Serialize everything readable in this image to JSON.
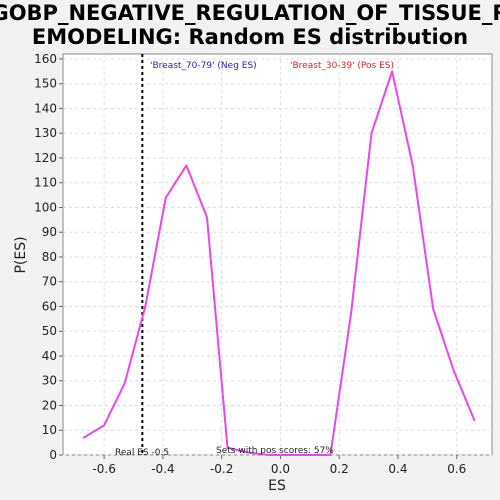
{
  "chart_data": {
    "type": "line",
    "title_line1": "GOBP_NEGATIVE_REGULATION_OF_TISSUE_R",
    "title_line2": "EMODELING: Random ES distribution",
    "xlabel": "ES",
    "ylabel": "P(ES)",
    "xlim": [
      -0.74,
      0.72
    ],
    "ylim": [
      0,
      162
    ],
    "grid": true,
    "x_ticks": [
      -0.6,
      -0.4,
      -0.2,
      0.0,
      0.2,
      0.4,
      0.6
    ],
    "x_tick_labels": [
      "-0.6",
      "-0.4",
      "-0.2",
      "0.0",
      "0.2",
      "0.4",
      "0.6"
    ],
    "y_ticks": [
      0,
      10,
      20,
      30,
      40,
      50,
      60,
      70,
      80,
      90,
      100,
      110,
      120,
      130,
      140,
      150,
      160
    ],
    "y_tick_labels": [
      "0",
      "10",
      "20",
      "30",
      "40",
      "50",
      "60",
      "70",
      "80",
      "90",
      "100",
      "110",
      "120",
      "130",
      "140",
      "150",
      "160"
    ],
    "line_color": "#ee44ee",
    "series": [
      {
        "x": [
          -0.67,
          -0.6,
          -0.53,
          -0.46,
          -0.39,
          -0.32,
          -0.25,
          -0.18,
          -0.11,
          -0.04,
          0.03,
          0.1,
          0.17,
          0.24,
          0.31,
          0.38,
          0.45,
          0.52,
          0.59,
          0.66
        ],
        "values": [
          7,
          12,
          29,
          60,
          104,
          117,
          96,
          3,
          1,
          0,
          0,
          0,
          0,
          57,
          130,
          155,
          117,
          59,
          34,
          14
        ]
      }
    ],
    "real_es": -0.47,
    "real_es_color": "#000000",
    "annotations": {
      "neg_label": "'Breast_70-79' (Neg ES)",
      "neg_color": "#2222cc",
      "pos_label": "'Breast_30-39' (Pos ES)",
      "pos_color": "#dd2222",
      "real_es_label": "Real ES -0.5",
      "pos_scores_label": "Sets with pos scores: 57%"
    }
  }
}
